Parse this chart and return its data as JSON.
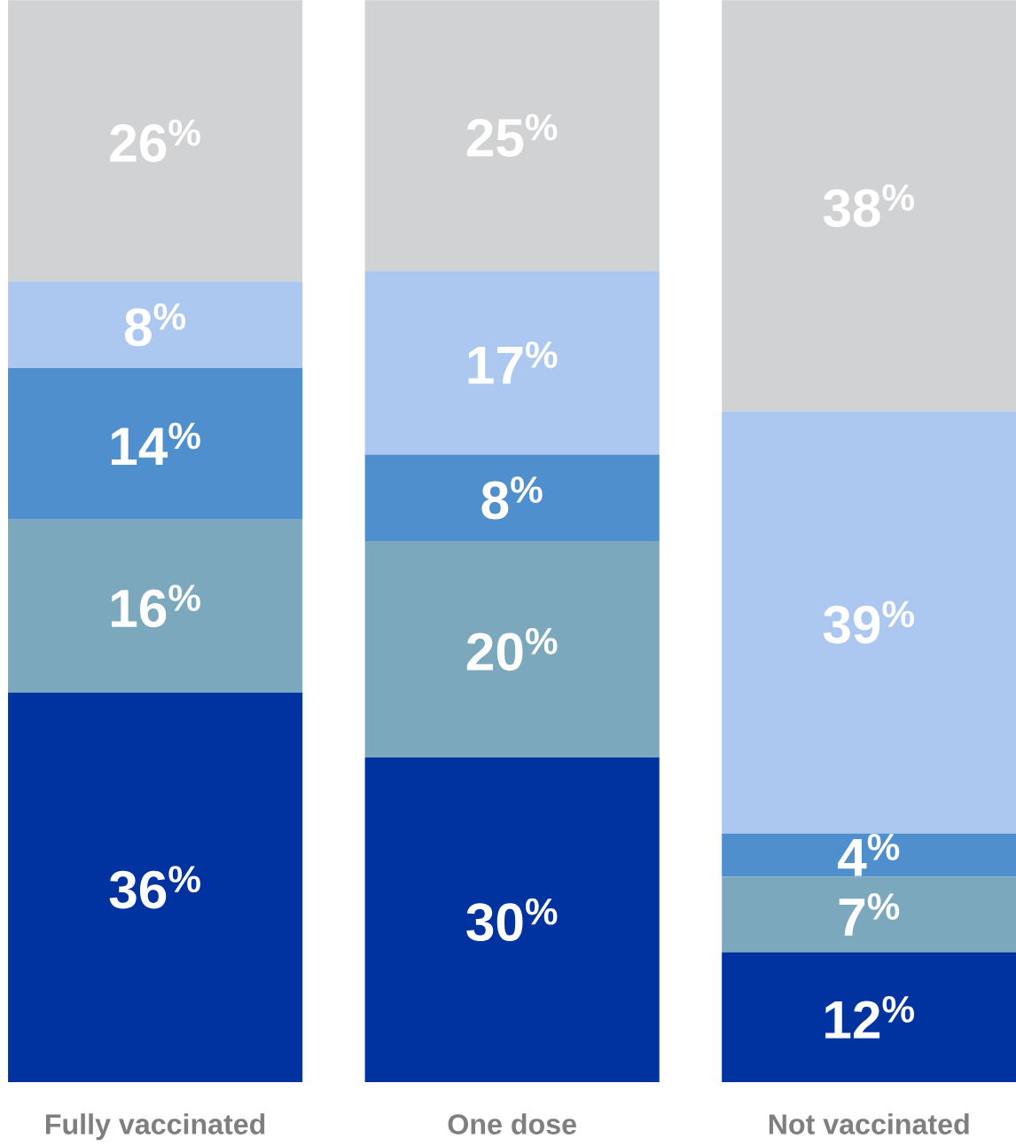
{
  "chart_data": {
    "type": "bar",
    "stacked": true,
    "categories": [
      "Fully vaccinated",
      "One dose",
      "Not vaccinated"
    ],
    "series": [
      {
        "color": "#0033a0",
        "values": [
          36,
          30,
          12
        ],
        "value_labels": [
          "36$^{%}$",
          "30$^{%}$",
          "12$^{%}$"
        ]
      },
      {
        "color": "#7ba8bc",
        "values": [
          16,
          20,
          7
        ],
        "value_labels": [
          "16$^{%}$",
          "20$^{%}$",
          "7$^{%}$"
        ]
      },
      {
        "color": "#4f8fcd",
        "values": [
          14,
          8,
          4
        ],
        "value_labels": [
          "14$^{%}$",
          "8$^{%}$",
          "4$^{%}$"
        ]
      },
      {
        "color": "#adc8f0",
        "values": [
          8,
          17,
          39
        ],
        "value_labels": [
          "8$^{%}$",
          "17$^{%}$",
          "39$^{%}$"
        ]
      },
      {
        "color": "#d1d2d4",
        "values": [
          26,
          25,
          38
        ],
        "value_labels": [
          "26$^{%}$",
          "25$^{%}$",
          "38$^{%}$"
        ]
      }
    ]
  }
}
